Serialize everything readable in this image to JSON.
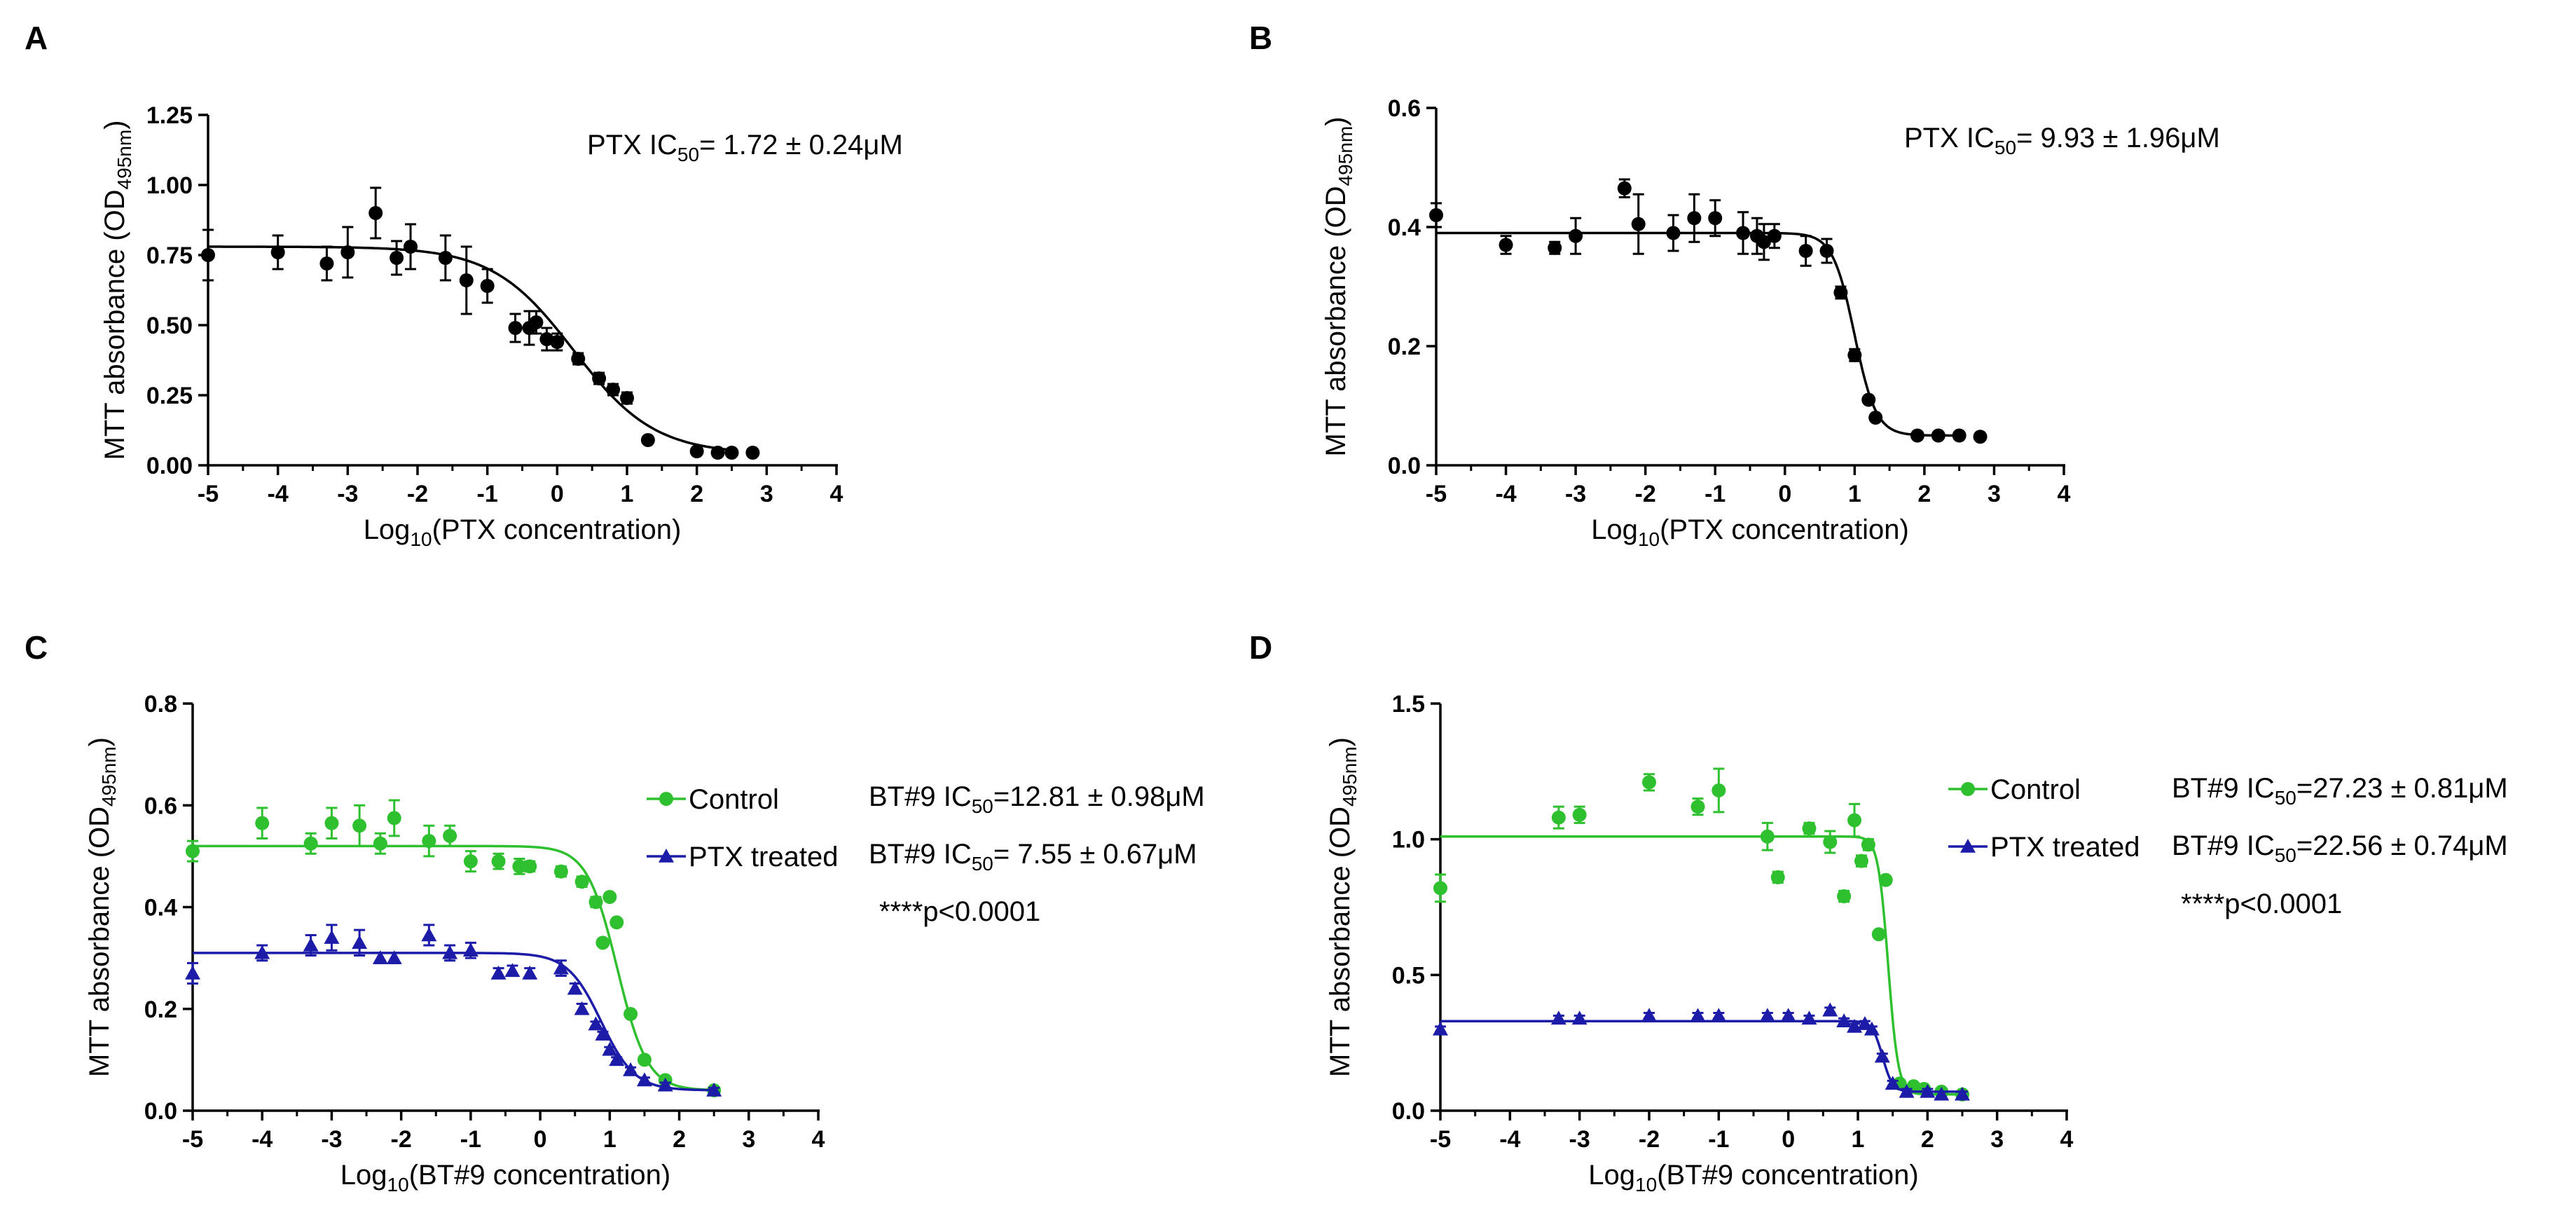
{
  "colors": {
    "black": "#000000",
    "green": "#2ec02e",
    "blue": "#1c1ca8"
  },
  "chart_data": [
    {
      "panel": "A",
      "type": "scatter",
      "xlabel": {
        "pre": "Log",
        "sub": "10",
        "post": "(PTX concentration)"
      },
      "ylabel": {
        "pre": "MTT absorbance (OD",
        "sub": "495nm",
        "post": ")"
      },
      "xlim": [
        -5,
        4
      ],
      "ylim": [
        0,
        1.25
      ],
      "xticks": [
        "-5",
        "-4",
        "-3",
        "-2",
        "-1",
        "0",
        "1",
        "2",
        "3",
        "4"
      ],
      "yticks": [
        "0.00",
        "0.25",
        "0.50",
        "0.75",
        "1.00",
        "1.25"
      ],
      "series": [
        {
          "name": "PTX",
          "color": "#000000",
          "marker": "circle",
          "fit": {
            "top": 0.78,
            "bottom": 0.04,
            "logIC50": 0.236,
            "hill": 0.75
          },
          "points": [
            [
              -5,
              0.75,
              0.09
            ],
            [
              -4,
              0.76,
              0.06
            ],
            [
              -3.3,
              0.72,
              0.06
            ],
            [
              -3,
              0.76,
              0.09
            ],
            [
              -2.6,
              0.9,
              0.09
            ],
            [
              -2.3,
              0.74,
              0.06
            ],
            [
              -2.1,
              0.78,
              0.08
            ],
            [
              -1.6,
              0.74,
              0.08
            ],
            [
              -1.3,
              0.66,
              0.12
            ],
            [
              -1,
              0.64,
              0.06
            ],
            [
              -0.6,
              0.49,
              0.05
            ],
            [
              -0.4,
              0.49,
              0.06
            ],
            [
              -0.3,
              0.51,
              0.04
            ],
            [
              -0.15,
              0.45,
              0.04
            ],
            [
              0,
              0.44,
              0.03
            ],
            [
              0.3,
              0.38,
              0.02
            ],
            [
              0.6,
              0.31,
              0.02
            ],
            [
              0.8,
              0.27,
              0.02
            ],
            [
              1,
              0.24,
              0.02
            ],
            [
              1.3,
              0.09,
              0.01
            ],
            [
              2,
              0.05,
              0.01
            ],
            [
              2.3,
              0.045,
              0.005
            ],
            [
              2.5,
              0.045,
              0.005
            ],
            [
              2.8,
              0.045,
              0.005
            ]
          ],
          "annotation": {
            "pre": "PTX IC",
            "sub": "50",
            "post": "=   1.72 ± 0.24μM"
          }
        }
      ]
    },
    {
      "panel": "B",
      "type": "scatter",
      "xlabel": {
        "pre": "Log",
        "sub": "10",
        "post": "(PTX concentration)"
      },
      "ylabel": {
        "pre": "MTT absorbance (OD",
        "sub": "495nm",
        "post": ")"
      },
      "xlim": [
        -5,
        4
      ],
      "ylim": [
        0,
        0.6
      ],
      "xticks": [
        "-5",
        "-4",
        "-3",
        "-2",
        "-1",
        "0",
        "1",
        "2",
        "3",
        "4"
      ],
      "yticks": [
        "0.0",
        "0.2",
        "0.4",
        "0.6"
      ],
      "series": [
        {
          "name": "PTX",
          "color": "#000000",
          "marker": "circle",
          "fit": {
            "top": 0.39,
            "bottom": 0.05,
            "logIC50": 0.997,
            "hill": 2.8
          },
          "points": [
            [
              -5,
              0.42,
              0.02
            ],
            [
              -4,
              0.37,
              0.015
            ],
            [
              -3.3,
              0.365,
              0.01
            ],
            [
              -3,
              0.385,
              0.03
            ],
            [
              -2.3,
              0.465,
              0.015
            ],
            [
              -2.1,
              0.405,
              0.05
            ],
            [
              -1.6,
              0.39,
              0.03
            ],
            [
              -1.3,
              0.415,
              0.04
            ],
            [
              -1,
              0.415,
              0.03
            ],
            [
              -0.6,
              0.39,
              0.035
            ],
            [
              -0.4,
              0.385,
              0.03
            ],
            [
              -0.3,
              0.375,
              0.03
            ],
            [
              -0.15,
              0.385,
              0.02
            ],
            [
              0.3,
              0.36,
              0.025
            ],
            [
              0.6,
              0.36,
              0.02
            ],
            [
              0.8,
              0.29,
              0.01
            ],
            [
              1,
              0.185,
              0.01
            ],
            [
              1.2,
              0.11,
              0.005
            ],
            [
              1.3,
              0.08,
              0.005
            ],
            [
              1.9,
              0.05,
              0.004
            ],
            [
              2.2,
              0.05,
              0.004
            ],
            [
              2.5,
              0.05,
              0.004
            ],
            [
              2.8,
              0.048,
              0.004
            ]
          ],
          "annotation": {
            "pre": "PTX IC",
            "sub": "50",
            "post": "=   9.93 ± 1.96μM"
          }
        }
      ]
    },
    {
      "panel": "C",
      "type": "scatter",
      "xlabel": {
        "pre": "Log",
        "sub": "10",
        "post": "(BT#9 concentration)"
      },
      "ylabel": {
        "pre": "MTT absorbance (OD",
        "sub": "495nm",
        "post": ")"
      },
      "xlim": [
        -5,
        4
      ],
      "ylim": [
        0,
        0.8
      ],
      "xticks": [
        "-5",
        "-4",
        "-3",
        "-2",
        "-1",
        "0",
        "1",
        "2",
        "3",
        "4"
      ],
      "yticks": [
        "0.0",
        "0.2",
        "0.4",
        "0.6",
        "0.8"
      ],
      "series": [
        {
          "name": "Control",
          "color": "#2ec02e",
          "marker": "circle",
          "fit": {
            "top": 0.52,
            "bottom": 0.04,
            "logIC50": 1.108,
            "hill": 2.0
          },
          "points": [
            [
              -5,
              0.51,
              0.02
            ],
            [
              -4,
              0.565,
              0.03
            ],
            [
              -3.3,
              0.525,
              0.02
            ],
            [
              -3,
              0.565,
              0.03
            ],
            [
              -2.6,
              0.56,
              0.04
            ],
            [
              -2.3,
              0.525,
              0.02
            ],
            [
              -2.1,
              0.575,
              0.035
            ],
            [
              -1.6,
              0.53,
              0.03
            ],
            [
              -1.3,
              0.54,
              0.02
            ],
            [
              -1,
              0.49,
              0.02
            ],
            [
              -0.6,
              0.49,
              0.015
            ],
            [
              -0.3,
              0.48,
              0.015
            ],
            [
              -0.15,
              0.48,
              0.01
            ],
            [
              0.3,
              0.47,
              0.01
            ],
            [
              0.6,
              0.45,
              0.01
            ],
            [
              0.8,
              0.41,
              0.01
            ],
            [
              1,
              0.42,
              0.005
            ],
            [
              1.1,
              0.37,
              0.005
            ],
            [
              0.9,
              0.33,
              0.005
            ],
            [
              1.3,
              0.19,
              0.005
            ],
            [
              1.5,
              0.1,
              0.005
            ],
            [
              1.8,
              0.06,
              0.005
            ],
            [
              2.5,
              0.04,
              0.005
            ]
          ],
          "legend": "Control",
          "annotation": {
            "pre": "BT#9 IC",
            "sub": "50",
            "post": "=12.81 ± 0.98μM"
          }
        },
        {
          "name": "PTX treated",
          "color": "#1c1ca8",
          "marker": "triangle",
          "fit": {
            "top": 0.31,
            "bottom": 0.04,
            "logIC50": 0.878,
            "hill": 1.8
          },
          "points": [
            [
              -5,
              0.27,
              0.02
            ],
            [
              -4,
              0.31,
              0.015
            ],
            [
              -3.3,
              0.325,
              0.02
            ],
            [
              -3,
              0.34,
              0.025
            ],
            [
              -2.6,
              0.33,
              0.025
            ],
            [
              -2.3,
              0.3,
              0.01
            ],
            [
              -2.1,
              0.3,
              0.01
            ],
            [
              -1.6,
              0.345,
              0.02
            ],
            [
              -1.3,
              0.31,
              0.015
            ],
            [
              -1,
              0.315,
              0.015
            ],
            [
              -0.6,
              0.27,
              0.01
            ],
            [
              -0.4,
              0.275,
              0.01
            ],
            [
              -0.15,
              0.27,
              0.01
            ],
            [
              0.3,
              0.28,
              0.015
            ],
            [
              0.5,
              0.24,
              0.01
            ],
            [
              0.6,
              0.2,
              0.01
            ],
            [
              0.8,
              0.17,
              0.005
            ],
            [
              0.9,
              0.15,
              0.005
            ],
            [
              1,
              0.12,
              0.005
            ],
            [
              1.1,
              0.1,
              0.005
            ],
            [
              1.3,
              0.08,
              0.005
            ],
            [
              1.5,
              0.06,
              0.005
            ],
            [
              1.8,
              0.05,
              0.005
            ],
            [
              2.5,
              0.04,
              0.005
            ]
          ],
          "legend": "PTX treated",
          "annotation": {
            "pre": "BT#9 IC",
            "sub": "50",
            "post": "=  7.55 ± 0.67μM"
          }
        }
      ],
      "note": "****p<0.0001"
    },
    {
      "panel": "D",
      "type": "scatter",
      "xlabel": {
        "pre": "Log",
        "sub": "10",
        "post": "(BT#9 concentration)"
      },
      "ylabel": {
        "pre": "MTT absorbance (OD",
        "sub": "495nm",
        "post": ")"
      },
      "xlim": [
        -5,
        4
      ],
      "ylim": [
        0,
        1.5
      ],
      "xticks": [
        "-5",
        "-4",
        "-3",
        "-2",
        "-1",
        "0",
        "1",
        "2",
        "3",
        "4"
      ],
      "yticks": [
        "0.0",
        "0.5",
        "1.0",
        "1.5"
      ],
      "series": [
        {
          "name": "Control",
          "color": "#2ec02e",
          "marker": "circle",
          "fit": {
            "top": 1.01,
            "bottom": 0.06,
            "logIC50": 1.435,
            "hill": 6.0
          },
          "points": [
            [
              -5,
              0.82,
              0.05
            ],
            [
              -3.3,
              1.08,
              0.04
            ],
            [
              -3,
              1.09,
              0.03
            ],
            [
              -2,
              1.21,
              0.03
            ],
            [
              -1.3,
              1.12,
              0.03
            ],
            [
              -1,
              1.18,
              0.08
            ],
            [
              -0.3,
              1.01,
              0.05
            ],
            [
              -0.15,
              0.86,
              0.02
            ],
            [
              0.3,
              1.04,
              0.02
            ],
            [
              0.6,
              0.99,
              0.04
            ],
            [
              0.8,
              0.79,
              0.02
            ],
            [
              0.95,
              1.07,
              0.06
            ],
            [
              1.05,
              0.92,
              0.02
            ],
            [
              1.15,
              0.98,
              0.02
            ],
            [
              1.3,
              0.65,
              0.01
            ],
            [
              1.4,
              0.85,
              0.01
            ],
            [
              1.6,
              0.1,
              0.01
            ],
            [
              1.8,
              0.09,
              0.01
            ],
            [
              1.95,
              0.08,
              0.01
            ],
            [
              2.2,
              0.07,
              0.01
            ],
            [
              2.5,
              0.06,
              0.01
            ]
          ],
          "legend": "Control",
          "annotation": {
            "pre": "BT#9 IC",
            "sub": "50",
            "post": "=27.23 ± 0.81μM"
          }
        },
        {
          "name": "PTX treated",
          "color": "#1c1ca8",
          "marker": "triangle",
          "fit": {
            "top": 0.33,
            "bottom": 0.07,
            "logIC50": 1.353,
            "hill": 6.0
          },
          "points": [
            [
              -5,
              0.3,
              0.01
            ],
            [
              -3.3,
              0.34,
              0.01
            ],
            [
              -3,
              0.34,
              0.01
            ],
            [
              -2,
              0.35,
              0.01
            ],
            [
              -1.3,
              0.35,
              0.01
            ],
            [
              -1,
              0.35,
              0.01
            ],
            [
              -0.3,
              0.35,
              0.01
            ],
            [
              0,
              0.35,
              0.01
            ],
            [
              0.3,
              0.34,
              0.01
            ],
            [
              0.6,
              0.37,
              0.01
            ],
            [
              0.8,
              0.33,
              0.01
            ],
            [
              0.95,
              0.31,
              0.01
            ],
            [
              1.1,
              0.32,
              0.01
            ],
            [
              1.2,
              0.3,
              0.01
            ],
            [
              1.35,
              0.2,
              0.01
            ],
            [
              1.5,
              0.1,
              0.01
            ],
            [
              1.7,
              0.07,
              0.01
            ],
            [
              2,
              0.07,
              0.01
            ],
            [
              2.2,
              0.06,
              0.01
            ],
            [
              2.5,
              0.06,
              0.01
            ]
          ],
          "legend": "PTX treated",
          "annotation": {
            "pre": "BT#9 IC",
            "sub": "50",
            "post": "=22.56 ± 0.74μM"
          }
        }
      ],
      "note": "****p<0.0001"
    }
  ]
}
